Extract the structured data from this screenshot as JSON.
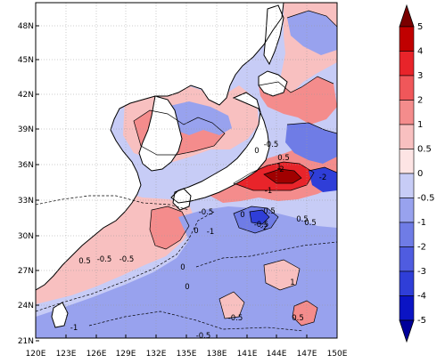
{
  "map": {
    "lat_labels": [
      "48N",
      "45N",
      "42N",
      "39N",
      "36N",
      "33N",
      "30N",
      "27N",
      "24N",
      "21N"
    ],
    "lon_labels": [
      "120E",
      "123E",
      "126E",
      "129E",
      "132E",
      "135E",
      "138E",
      "141E",
      "144E",
      "147E",
      "150E"
    ],
    "contour_labels": [
      "0",
      "-0.5",
      "0.5",
      "-1",
      "1",
      "2",
      "-2",
      "-0.5",
      "0",
      "0.5",
      "-1",
      "-0.5",
      "0",
      "0.5",
      "-0.5",
      "-1",
      "0.5",
      "-0.5",
      "0",
      "1",
      "0.5",
      "-2",
      "-0.5",
      "0.5",
      "-0.5",
      "0"
    ]
  },
  "colorbar": {
    "levels": [
      "5",
      "4",
      "3",
      "2",
      "1",
      "0.5",
      "0",
      "-0.5",
      "-1",
      "-2",
      "-3",
      "-4",
      "-5"
    ],
    "colors": [
      "#7a0000",
      "#c00000",
      "#e8242a",
      "#f0575a",
      "#f48c8c",
      "#f8c0c0",
      "#fde4e4",
      "#c7ccf6",
      "#98a2ee",
      "#6f7ce6",
      "#4f5ce0",
      "#2f3ed8",
      "#0b14c4",
      "#00009a"
    ]
  },
  "field_colors": {
    "land": "#ffffff",
    "coast": "#000000",
    "neg_light": "#c7ccf6",
    "neg_mid": "#98a2ee",
    "neg_dark": "#6f7ce6",
    "neg_deep": "#2f3ed8",
    "pos_light": "#f8c0c0",
    "pos_mid": "#f48c8c",
    "pos_dark": "#e8242a",
    "pos_deep": "#a00000"
  }
}
